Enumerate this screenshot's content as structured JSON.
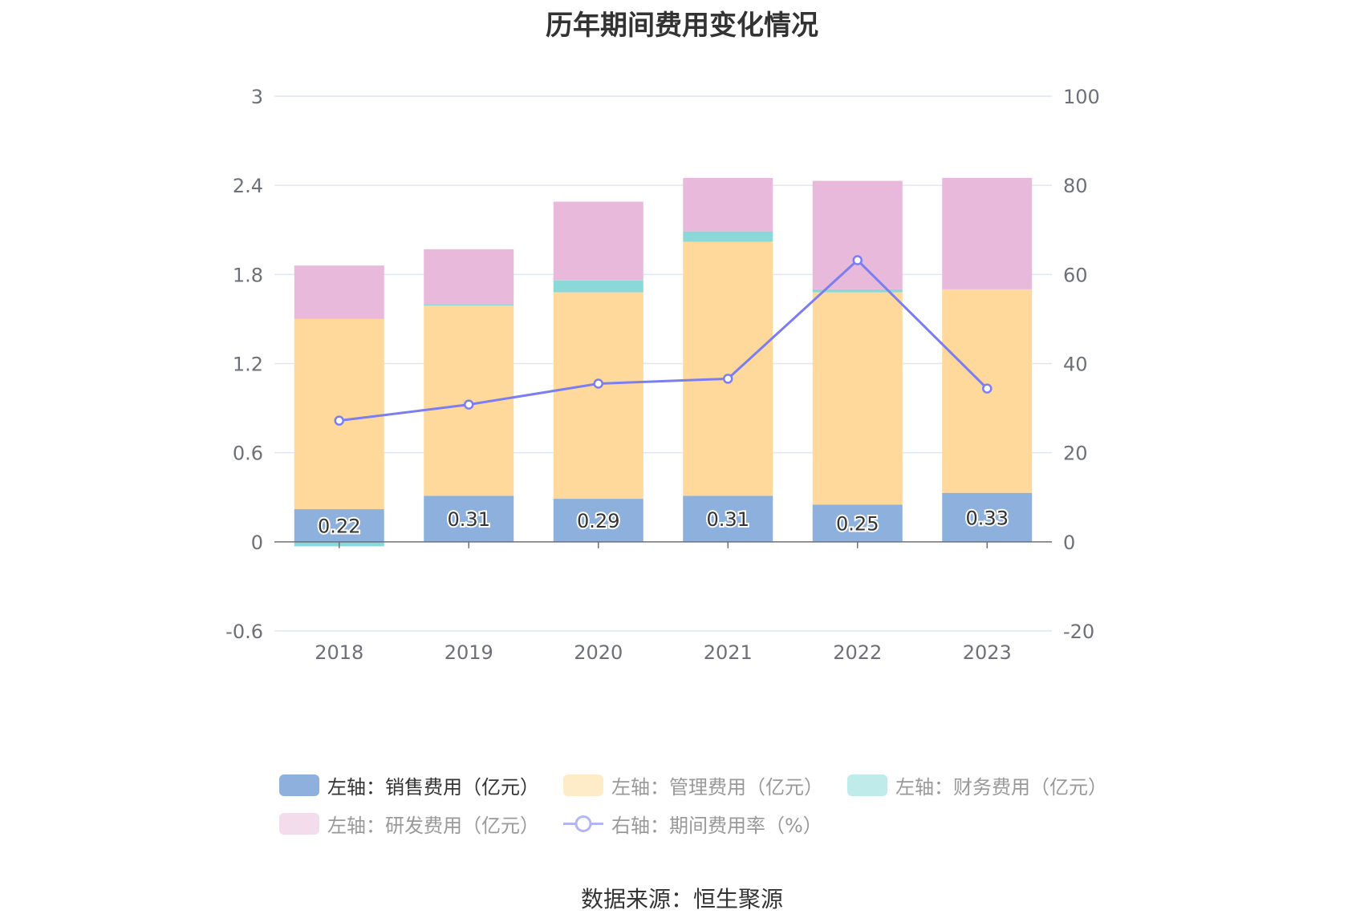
{
  "title": "历年期间费用变化情况",
  "source": "数据来源：恒生聚源",
  "chart_data": {
    "type": "bar",
    "stacked": true,
    "categories": [
      "2018",
      "2019",
      "2020",
      "2021",
      "2022",
      "2023"
    ],
    "left_axis": {
      "ticks": [
        "3",
        "2.4",
        "1.8",
        "1.2",
        "0.6",
        "0",
        "-0.6"
      ],
      "ylim": [
        -0.6,
        3
      ]
    },
    "right_axis": {
      "ticks": [
        "100",
        "80",
        "60",
        "40",
        "20",
        "0",
        "-20"
      ],
      "ylim": [
        -20,
        100
      ]
    },
    "grid": true,
    "series": [
      {
        "name": "左轴：销售费用（亿元）",
        "type": "bar",
        "color": "#8eb0dc",
        "values": [
          0.22,
          0.31,
          0.29,
          0.31,
          0.25,
          0.33
        ],
        "data_labels": [
          "0.22",
          "0.31",
          "0.29",
          "0.31",
          "0.25",
          "0.33"
        ]
      },
      {
        "name": "左轴：管理费用（亿元）",
        "type": "bar",
        "color": "#fed99b",
        "values": [
          1.28,
          1.28,
          1.39,
          1.71,
          1.43,
          1.37
        ]
      },
      {
        "name": "左轴：财务费用（亿元）",
        "type": "bar",
        "color": "#8ad8d8",
        "values": [
          -0.03,
          0.01,
          0.08,
          0.07,
          0.02,
          0.0
        ]
      },
      {
        "name": "左轴：研发费用（亿元）",
        "type": "bar",
        "color": "#e8b9da",
        "values": [
          0.36,
          0.37,
          0.53,
          0.36,
          0.73,
          0.75
        ]
      },
      {
        "name": "右轴：期间费用率（%）",
        "type": "line",
        "axis": "right",
        "color": "#7b7ef0",
        "values": [
          27.2,
          30.8,
          35.5,
          36.6,
          63.2,
          34.4
        ]
      }
    ],
    "legend_position": "bottom"
  },
  "legend": {
    "items": [
      {
        "label": "左轴：销售费用（亿元）",
        "color": "#8eb0dc",
        "kind": "bar",
        "active": true
      },
      {
        "label": "左轴：管理费用（亿元）",
        "color": "#feebc8",
        "kind": "bar",
        "active": false
      },
      {
        "label": "左轴：财务费用（亿元）",
        "color": "#c0ebeb",
        "kind": "bar",
        "active": false
      },
      {
        "label": "左轴：研发费用（亿元）",
        "color": "#f3dcec",
        "kind": "bar",
        "active": false
      },
      {
        "label": "右轴：期间费用率（%）",
        "color": "#b3b5f5",
        "kind": "line",
        "active": false
      }
    ]
  }
}
